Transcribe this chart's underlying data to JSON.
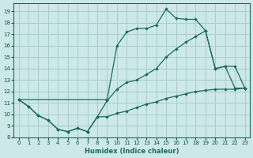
{
  "xlabel": "Humidex (Indice chaleur)",
  "bg_color": "#cce8e8",
  "grid_color": "#aacccc",
  "line_color": "#1a6b5a",
  "xlim": [
    -0.5,
    23.5
  ],
  "ylim": [
    8.0,
    19.7
  ],
  "xticks": [
    0,
    1,
    2,
    3,
    4,
    5,
    6,
    7,
    8,
    9,
    10,
    11,
    12,
    13,
    14,
    15,
    16,
    17,
    18,
    19,
    20,
    21,
    22,
    23
  ],
  "yticks": [
    8,
    9,
    10,
    11,
    12,
    13,
    14,
    15,
    16,
    17,
    18,
    19
  ],
  "line1_x": [
    0,
    1,
    2,
    3,
    4,
    5,
    6,
    7,
    8,
    9,
    10,
    11,
    12,
    13,
    14,
    15,
    16,
    17,
    18,
    19,
    20,
    21,
    22,
    23
  ],
  "line1_y": [
    11.3,
    10.7,
    9.9,
    9.5,
    8.7,
    8.5,
    8.8,
    8.5,
    9.8,
    9.8,
    10.1,
    10.3,
    10.6,
    10.9,
    11.1,
    11.4,
    11.6,
    11.8,
    12.0,
    12.1,
    12.2,
    12.2,
    12.2,
    12.3
  ],
  "line2_x": [
    0,
    1,
    2,
    3,
    4,
    5,
    6,
    7,
    8,
    9,
    10,
    11,
    12,
    13,
    14,
    15,
    16,
    17,
    18,
    19,
    20,
    21,
    22,
    23
  ],
  "line2_y": [
    11.3,
    10.7,
    9.9,
    9.5,
    8.7,
    8.5,
    8.8,
    8.5,
    9.8,
    11.2,
    12.2,
    12.8,
    13.0,
    13.5,
    14.0,
    15.0,
    15.7,
    16.3,
    16.8,
    17.3,
    14.0,
    14.2,
    12.3,
    12.3
  ],
  "line3_x": [
    0,
    9,
    10,
    11,
    12,
    13,
    14,
    15,
    16,
    17,
    18,
    19,
    20,
    21,
    22,
    23
  ],
  "line3_y": [
    11.3,
    11.3,
    16.0,
    17.2,
    17.5,
    17.5,
    17.8,
    19.2,
    18.4,
    18.3,
    18.3,
    17.3,
    14.0,
    14.2,
    14.2,
    12.3
  ]
}
